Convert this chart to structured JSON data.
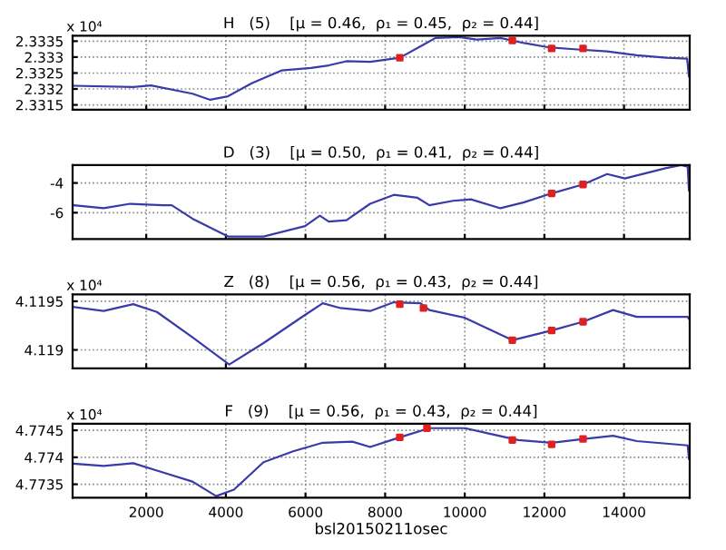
{
  "chart_data": [
    {
      "type": "line",
      "title": "H   (5)    [μ = 0.46,  ρ₁ = 0.45,  ρ₂ = 0.44]",
      "annotations": [
        "x 10⁴"
      ],
      "xlim": [
        150,
        15650
      ],
      "xticks": [
        2000,
        4000,
        6000,
        8000,
        10000,
        12000,
        14000
      ],
      "ylim": [
        2.33135,
        2.33367
      ],
      "yticks": [
        2.3315,
        2.332,
        2.3325,
        2.333,
        2.3335
      ],
      "grid": true,
      "tick_labels": "y",
      "series": [
        {
          "color": "#3a3aa8",
          "x": [
            185,
            1673,
            2119,
            3161,
            3607,
            4053,
            4649,
            5393,
            6137,
            6583,
            7029,
            7624,
            8368,
            8963,
            9261,
            9856,
            10302,
            10897,
            11492,
            12088,
            12832,
            13576,
            14320,
            15064,
            15585,
            15630
          ],
          "values": [
            2.3321,
            2.33206,
            2.33211,
            2.33185,
            2.33166,
            2.33177,
            2.33218,
            2.33258,
            2.33266,
            2.33274,
            2.33287,
            2.33285,
            2.33298,
            2.33339,
            2.3336,
            2.33363,
            2.33355,
            2.3336,
            2.33344,
            2.33331,
            2.33324,
            2.33318,
            2.33306,
            2.33298,
            2.33295,
            2.3324
          ]
        },
        {
          "type": "scatter",
          "color": "#e02020",
          "marker": "square",
          "x": [
            8368,
            11195,
            12182,
            12971
          ],
          "values": [
            2.33298,
            2.33352,
            2.33327,
            2.33327
          ]
        }
      ]
    },
    {
      "type": "line",
      "title": "D   (3)    [μ = 0.50,  ρ₁ = 0.41,  ρ₂ = 0.44]",
      "xlim": [
        150,
        15650
      ],
      "xticks": [
        2000,
        4000,
        6000,
        8000,
        10000,
        12000,
        14000
      ],
      "ylim": [
        -7.77,
        -2.8
      ],
      "yticks": [
        -6,
        -4
      ],
      "grid": true,
      "tick_labels": "y",
      "series": [
        {
          "color": "#3a3aa8",
          "x": [
            185,
            929,
            1598,
            2417,
            2640,
            3161,
            4053,
            4946,
            5988,
            6360,
            6583,
            7029,
            7624,
            8219,
            8814,
            9112,
            9707,
            10153,
            10897,
            11492,
            12182,
            12971,
            13576,
            14022,
            15064,
            15436,
            15600,
            15630
          ],
          "values": [
            -5.5,
            -5.7,
            -5.4,
            -5.5,
            -5.5,
            -6.4,
            -7.6,
            -7.6,
            -6.9,
            -6.2,
            -6.6,
            -6.5,
            -5.4,
            -4.8,
            -5.0,
            -5.5,
            -5.2,
            -5.1,
            -5.7,
            -5.3,
            -4.7,
            -4.1,
            -3.4,
            -3.7,
            -3.0,
            -2.8,
            -2.9,
            -4.5
          ]
        },
        {
          "type": "scatter",
          "color": "#e02020",
          "marker": "square",
          "x": [
            12182,
            12971
          ],
          "values": [
            -4.7,
            -4.1
          ]
        }
      ]
    },
    {
      "type": "line",
      "title": "Z   (8)    [μ = 0.56,  ρ₁ = 0.43,  ρ₂ = 0.44]",
      "annotations": [
        "x 10⁴"
      ],
      "xlim": [
        150,
        15650
      ],
      "xticks": [
        2000,
        4000,
        6000,
        8000,
        10000,
        12000,
        14000
      ],
      "ylim": [
        4.11881,
        4.11957
      ],
      "yticks": [
        4.119,
        4.1195
      ],
      "grid": true,
      "tick_labels": "y",
      "series": [
        {
          "color": "#3a3aa8",
          "x": [
            185,
            929,
            1673,
            2268,
            3161,
            4083,
            4946,
            5988,
            6434,
            6881,
            7624,
            8219,
            8889,
            9112,
            10004,
            11195,
            12182,
            12971,
            13725,
            14320,
            15600,
            15630
          ],
          "values": [
            4.11944,
            4.1194,
            4.11947,
            4.11939,
            4.11913,
            4.11885,
            4.11907,
            4.11936,
            4.11948,
            4.11943,
            4.1194,
            4.11949,
            4.11948,
            4.11941,
            4.11933,
            4.1191,
            4.1192,
            4.11929,
            4.11941,
            4.11934,
            4.11934,
            4.11932
          ]
        },
        {
          "type": "scatter",
          "color": "#e02020",
          "marker": "square",
          "x": [
            8368,
            8963,
            11195,
            12182,
            12971
          ],
          "values": [
            4.11947,
            4.11943,
            4.1191,
            4.1192,
            4.11929
          ]
        }
      ]
    },
    {
      "type": "line",
      "title": "F   (9)    [μ = 0.56,  ρ₁ = 0.43,  ρ₂ = 0.44]",
      "annotations": [
        "x 10⁴"
      ],
      "xlabel": "bsl20150211osec",
      "xlim": [
        150,
        15650
      ],
      "xticks": [
        2000,
        4000,
        6000,
        8000,
        10000,
        12000,
        14000
      ],
      "ylim": [
        4.77325,
        4.77462
      ],
      "yticks": [
        4.7735,
        4.774,
        4.7745
      ],
      "grid": true,
      "series": [
        {
          "color": "#3a3aa8",
          "x": [
            185,
            929,
            1673,
            2417,
            3161,
            3756,
            4202,
            4946,
            5690,
            6434,
            7178,
            7624,
            8368,
            9112,
            10004,
            10599,
            11344,
            12182,
            13000,
            13725,
            14320,
            15600,
            15630
          ],
          "values": [
            4.77388,
            4.77384,
            4.77389,
            4.77372,
            4.77355,
            4.77328,
            4.7734,
            4.77391,
            4.77411,
            4.77427,
            4.77429,
            4.77419,
            4.77437,
            4.77454,
            4.77454,
            4.77444,
            4.77432,
            4.77427,
            4.77434,
            4.7744,
            4.7743,
            4.77422,
            4.77397
          ]
        },
        {
          "type": "scatter",
          "color": "#e02020",
          "marker": "square",
          "x": [
            8368,
            9050,
            11195,
            12182,
            12971
          ],
          "values": [
            4.77437,
            4.77454,
            4.77432,
            4.77424,
            4.77434
          ]
        }
      ]
    }
  ]
}
